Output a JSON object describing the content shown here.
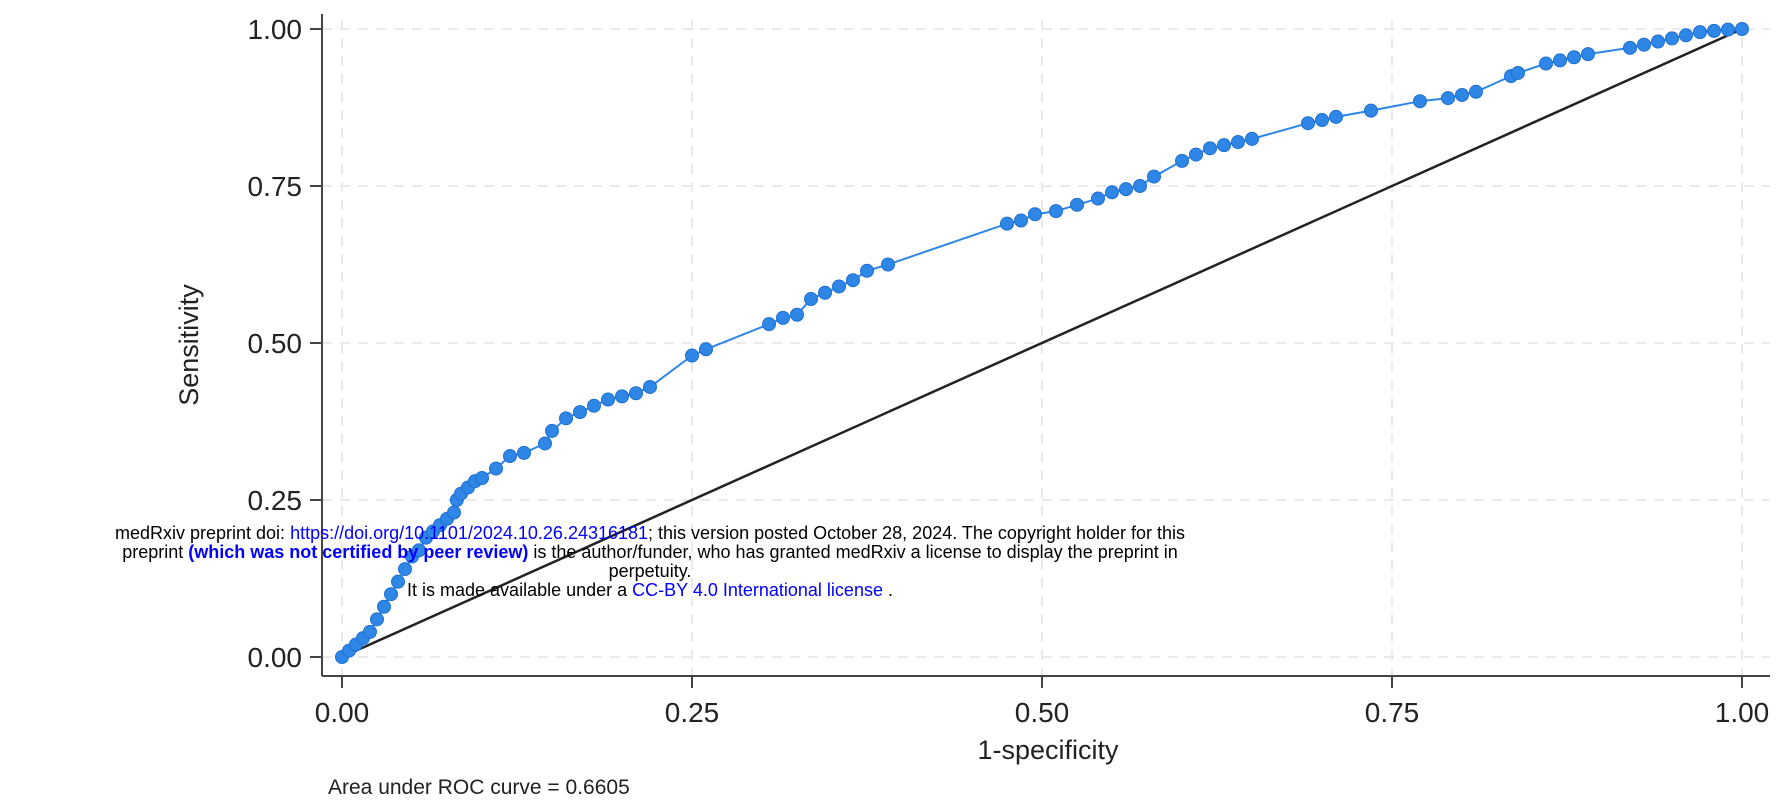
{
  "chart_data": {
    "type": "line",
    "xlabel": "1-specificity",
    "ylabel": "Sensitivity",
    "xlim": [
      0,
      1
    ],
    "ylim": [
      0,
      1
    ],
    "x_ticks": [
      "0.00",
      "0.25",
      "0.50",
      "0.75",
      "1.00"
    ],
    "y_ticks": [
      "0.00",
      "0.25",
      "0.50",
      "0.75",
      "1.00"
    ],
    "grid": true,
    "note": "Area under ROC curve = 0.6605",
    "colors": {
      "roc": "#2e86e6",
      "reference": "#222222",
      "grid": "#e4e4e4"
    },
    "series": [
      {
        "type": "line-with-markers",
        "x": [
          0.0,
          0.005,
          0.01,
          0.015,
          0.02,
          0.025,
          0.03,
          0.035,
          0.04,
          0.045,
          0.05,
          0.055,
          0.06,
          0.065,
          0.07,
          0.075,
          0.08,
          0.082,
          0.085,
          0.09,
          0.095,
          0.1,
          0.11,
          0.12,
          0.13,
          0.145,
          0.15,
          0.16,
          0.17,
          0.18,
          0.19,
          0.2,
          0.21,
          0.22,
          0.25,
          0.26,
          0.305,
          0.315,
          0.325,
          0.335,
          0.345,
          0.355,
          0.365,
          0.375,
          0.39,
          0.475,
          0.485,
          0.495,
          0.51,
          0.525,
          0.54,
          0.55,
          0.56,
          0.57,
          0.58,
          0.6,
          0.61,
          0.62,
          0.63,
          0.64,
          0.65,
          0.69,
          0.7,
          0.71,
          0.735,
          0.77,
          0.79,
          0.8,
          0.81,
          0.835,
          0.84,
          0.86,
          0.87,
          0.88,
          0.89,
          0.92,
          0.93,
          0.94,
          0.95,
          0.96,
          0.97,
          0.98,
          0.99,
          1.0
        ],
        "y": [
          0.0,
          0.01,
          0.02,
          0.03,
          0.04,
          0.06,
          0.08,
          0.1,
          0.12,
          0.14,
          0.16,
          0.17,
          0.19,
          0.2,
          0.21,
          0.22,
          0.23,
          0.25,
          0.26,
          0.27,
          0.28,
          0.285,
          0.3,
          0.32,
          0.325,
          0.34,
          0.36,
          0.38,
          0.39,
          0.4,
          0.41,
          0.415,
          0.42,
          0.43,
          0.48,
          0.49,
          0.53,
          0.54,
          0.545,
          0.57,
          0.58,
          0.59,
          0.6,
          0.615,
          0.625,
          0.69,
          0.695,
          0.705,
          0.71,
          0.72,
          0.73,
          0.74,
          0.745,
          0.75,
          0.765,
          0.79,
          0.8,
          0.81,
          0.815,
          0.82,
          0.825,
          0.85,
          0.855,
          0.86,
          0.87,
          0.885,
          0.89,
          0.895,
          0.9,
          0.925,
          0.93,
          0.945,
          0.95,
          0.955,
          0.96,
          0.97,
          0.975,
          0.98,
          0.985,
          0.99,
          0.995,
          0.997,
          0.999,
          1.0
        ]
      },
      {
        "type": "reference-line",
        "x": [
          0,
          1
        ],
        "y": [
          0,
          1
        ]
      }
    ]
  },
  "banner": {
    "line1_prefix": "medRxiv preprint doi: ",
    "line1_link": "https://doi.org/10.1101/2024.10.26.24316181",
    "line1_suffix": "; this version posted October 28, 2024. The copyright holder for this",
    "line2_prefix": "preprint ",
    "line2_bold": "(which was not certified by peer review)",
    "line2_suffix": " is the author/funder, who has granted medRxiv a license to display the preprint in",
    "line3": "perpetuity.",
    "line4_prefix": "It is made available under a ",
    "line4_link": "CC-BY 4.0 International license",
    "line4_suffix": " ."
  }
}
